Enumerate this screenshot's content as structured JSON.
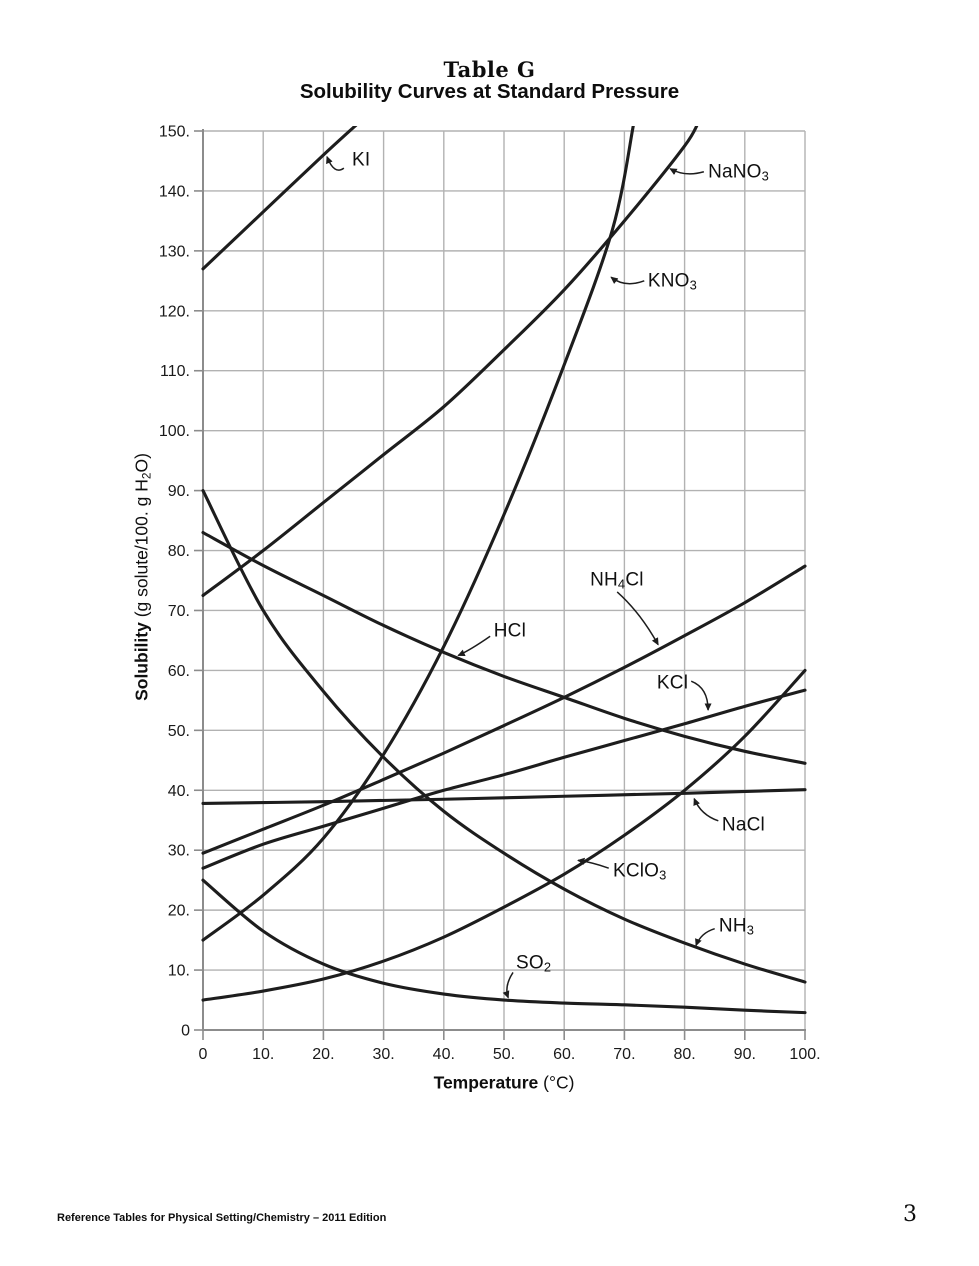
{
  "title": {
    "line1": "Table G",
    "line2": "Solubility Curves at Standard Pressure"
  },
  "footer": {
    "left": "Reference Tables for Physical Setting/Chemistry – 2011 Edition",
    "page": "3"
  },
  "chart_data": {
    "type": "line",
    "title": "Solubility Curves at Standard Pressure",
    "xlabel_bold": "Temperature",
    "xlabel_unit": " (°C)",
    "ylabel_bold": "Solubility",
    "ylabel_unit_parts": [
      [
        " (g solute/100. g H",
        "n"
      ],
      [
        "2",
        "s"
      ],
      [
        "O)",
        "n"
      ]
    ],
    "xlim": [
      0,
      100
    ],
    "ylim": [
      0,
      150
    ],
    "grid": true,
    "legend": "labels-on-curves",
    "x_ticks": [
      {
        "v": 0,
        "label": "0"
      },
      {
        "v": 10,
        "label": "10."
      },
      {
        "v": 20,
        "label": "20."
      },
      {
        "v": 30,
        "label": "30."
      },
      {
        "v": 40,
        "label": "40."
      },
      {
        "v": 50,
        "label": "50."
      },
      {
        "v": 60,
        "label": "60."
      },
      {
        "v": 70,
        "label": "70."
      },
      {
        "v": 80,
        "label": "80."
      },
      {
        "v": 90,
        "label": "90."
      },
      {
        "v": 100,
        "label": "100."
      }
    ],
    "y_ticks": [
      {
        "v": 0,
        "label": "0"
      },
      {
        "v": 10,
        "label": "10."
      },
      {
        "v": 20,
        "label": "20."
      },
      {
        "v": 30,
        "label": "30."
      },
      {
        "v": 40,
        "label": "40."
      },
      {
        "v": 50,
        "label": "50."
      },
      {
        "v": 60,
        "label": "60."
      },
      {
        "v": 70,
        "label": "70."
      },
      {
        "v": 80,
        "label": "80."
      },
      {
        "v": 90,
        "label": "90."
      },
      {
        "v": 100,
        "label": "100."
      },
      {
        "v": 110,
        "label": "110."
      },
      {
        "v": 120,
        "label": "120."
      },
      {
        "v": 130,
        "label": "130."
      },
      {
        "v": 140,
        "label": "140."
      },
      {
        "v": 150,
        "label": "150."
      }
    ],
    "colors": {
      "curve": "#1d1d1d",
      "grid": "#b2b2b2",
      "axis": "#8c8c8c",
      "text": "#111111"
    },
    "series": [
      {
        "name": "KI",
        "parts": [
          [
            "KI",
            "n"
          ]
        ],
        "points": [
          [
            0,
            127
          ],
          [
            10,
            136.5
          ],
          [
            20,
            146
          ],
          [
            26,
            151.5
          ]
        ],
        "label_pos": [
          24.75,
          145.2
        ],
        "arrow": {
          "start": [
            23.4,
            143.8
          ],
          "ctrl": [
            21.8,
            142.6
          ],
          "tip": [
            20.6,
            145.7
          ]
        }
      },
      {
        "name": "NaNO3",
        "parts": [
          [
            "NaNO",
            "n"
          ],
          [
            "3",
            "s"
          ]
        ],
        "points": [
          [
            0,
            72.5
          ],
          [
            10,
            80
          ],
          [
            20,
            88
          ],
          [
            30,
            96
          ],
          [
            40,
            104
          ],
          [
            50,
            113.5
          ],
          [
            60,
            123.5
          ],
          [
            70,
            135
          ],
          [
            80,
            147.5
          ],
          [
            82.5,
            152
          ]
        ],
        "label_pos": [
          83.9,
          143.2
        ],
        "arrow": {
          "start": [
            83.2,
            143.2
          ],
          "ctrl": [
            80.1,
            142.3
          ],
          "tip": [
            77.6,
            143.7
          ]
        }
      },
      {
        "name": "KNO3",
        "parts": [
          [
            "KNO",
            "n"
          ],
          [
            "3",
            "s"
          ]
        ],
        "points": [
          [
            0,
            15
          ],
          [
            10,
            22.5
          ],
          [
            20,
            32
          ],
          [
            30,
            46
          ],
          [
            40,
            64
          ],
          [
            50,
            86
          ],
          [
            60,
            111
          ],
          [
            68,
            133.5
          ],
          [
            71.5,
            151
          ]
        ],
        "label_pos": [
          73.9,
          125.0
        ],
        "arrow": {
          "start": [
            73.3,
            125.0
          ],
          "ctrl": [
            70.1,
            123.8
          ],
          "tip": [
            67.8,
            125.6
          ]
        }
      },
      {
        "name": "HCl",
        "parts": [
          [
            "HCl",
            "n"
          ]
        ],
        "points": [
          [
            0,
            83
          ],
          [
            10,
            77.5
          ],
          [
            20,
            72.5
          ],
          [
            30,
            67.5
          ],
          [
            40,
            63
          ],
          [
            50,
            59
          ],
          [
            60,
            55.5
          ],
          [
            70,
            52
          ],
          [
            80,
            49
          ],
          [
            90,
            46.5
          ],
          [
            100,
            44.5
          ]
        ],
        "label_pos": [
          48.3,
          66.6
        ],
        "arrow": {
          "start": [
            47.7,
            65.7
          ],
          "ctrl": [
            44.4,
            63.4
          ],
          "tip": [
            42.4,
            62.5
          ]
        }
      },
      {
        "name": "NH4Cl",
        "parts": [
          [
            "NH",
            "n"
          ],
          [
            "4",
            "s"
          ],
          [
            "Cl",
            "n"
          ]
        ],
        "points": [
          [
            0,
            29.5
          ],
          [
            10,
            33.5
          ],
          [
            20,
            37.5
          ],
          [
            30,
            41.8
          ],
          [
            40,
            46.2
          ],
          [
            50,
            50.8
          ],
          [
            60,
            55.5
          ],
          [
            70,
            60.5
          ],
          [
            80,
            65.8
          ],
          [
            90,
            71.3
          ],
          [
            100,
            77.4
          ]
        ],
        "label_pos": [
          64.3,
          75.1
        ],
        "arrow": {
          "start": [
            68.8,
            73.1
          ],
          "ctrl": [
            72.6,
            69.7
          ],
          "tip": [
            75.6,
            64.3
          ]
        }
      },
      {
        "name": "KCl",
        "parts": [
          [
            "KCl",
            "n"
          ]
        ],
        "points": [
          [
            0,
            27
          ],
          [
            10,
            31
          ],
          [
            20,
            34
          ],
          [
            30,
            37
          ],
          [
            40,
            40
          ],
          [
            50,
            42.6
          ],
          [
            60,
            45.5
          ],
          [
            70,
            48.3
          ],
          [
            80,
            51.1
          ],
          [
            90,
            54
          ],
          [
            100,
            56.7
          ]
        ],
        "label_pos": [
          75.4,
          57.9
        ],
        "arrow": {
          "start": [
            81.1,
            58.2
          ],
          "ctrl": [
            83.9,
            57.1
          ],
          "tip": [
            83.9,
            53.4
          ]
        }
      },
      {
        "name": "NaCl",
        "parts": [
          [
            "NaCl",
            "n"
          ]
        ],
        "points": [
          [
            0,
            37.8
          ],
          [
            20,
            38.1
          ],
          [
            40,
            38.5
          ],
          [
            60,
            39
          ],
          [
            80,
            39.5
          ],
          [
            100,
            40.1
          ]
        ],
        "label_pos": [
          86.2,
          34.2
        ],
        "arrow": {
          "start": [
            85.6,
            34.9
          ],
          "ctrl": [
            82.7,
            35.9
          ],
          "tip": [
            81.6,
            38.6
          ]
        }
      },
      {
        "name": "KClO3",
        "parts": [
          [
            "KClO",
            "n"
          ],
          [
            "3",
            "s"
          ]
        ],
        "points": [
          [
            0,
            5
          ],
          [
            10,
            6.5
          ],
          [
            20,
            8.5
          ],
          [
            30,
            11.5
          ],
          [
            40,
            15.5
          ],
          [
            50,
            20.5
          ],
          [
            60,
            26
          ],
          [
            70,
            32.5
          ],
          [
            80,
            40
          ],
          [
            90,
            49
          ],
          [
            100,
            60
          ]
        ],
        "label_pos": [
          68.1,
          26.5
        ],
        "arrow": {
          "start": [
            67.4,
            27.0
          ],
          "ctrl": [
            64.6,
            28.0
          ],
          "tip": [
            62.3,
            28.3
          ]
        }
      },
      {
        "name": "NH3",
        "parts": [
          [
            "NH",
            "n"
          ],
          [
            "3",
            "s"
          ]
        ],
        "points": [
          [
            0,
            90
          ],
          [
            10,
            70
          ],
          [
            20,
            56.5
          ],
          [
            30,
            45.5
          ],
          [
            40,
            36.5
          ],
          [
            50,
            29.5
          ],
          [
            60,
            23.5
          ],
          [
            70,
            18.5
          ],
          [
            80,
            14.5
          ],
          [
            90,
            11
          ],
          [
            100,
            8
          ]
        ],
        "label_pos": [
          85.7,
          17.4
        ],
        "arrow": {
          "start": [
            85.0,
            16.9
          ],
          "ctrl": [
            82.7,
            16.2
          ],
          "tip": [
            81.9,
            14.1
          ]
        }
      },
      {
        "name": "SO2",
        "parts": [
          [
            "SO",
            "n"
          ],
          [
            "2",
            "s"
          ]
        ],
        "points": [
          [
            0,
            25
          ],
          [
            10,
            16.5
          ],
          [
            20,
            11
          ],
          [
            30,
            7.8
          ],
          [
            40,
            6
          ],
          [
            50,
            5
          ],
          [
            60,
            4.5
          ],
          [
            70,
            4.2
          ],
          [
            80,
            3.8
          ],
          [
            90,
            3.3
          ],
          [
            100,
            2.9
          ]
        ],
        "label_pos": [
          52.0,
          11.2
        ],
        "arrow": {
          "start": [
            51.5,
            9.6
          ],
          "ctrl": [
            50.0,
            7.3
          ],
          "tip": [
            50.7,
            5.4
          ]
        }
      }
    ]
  }
}
